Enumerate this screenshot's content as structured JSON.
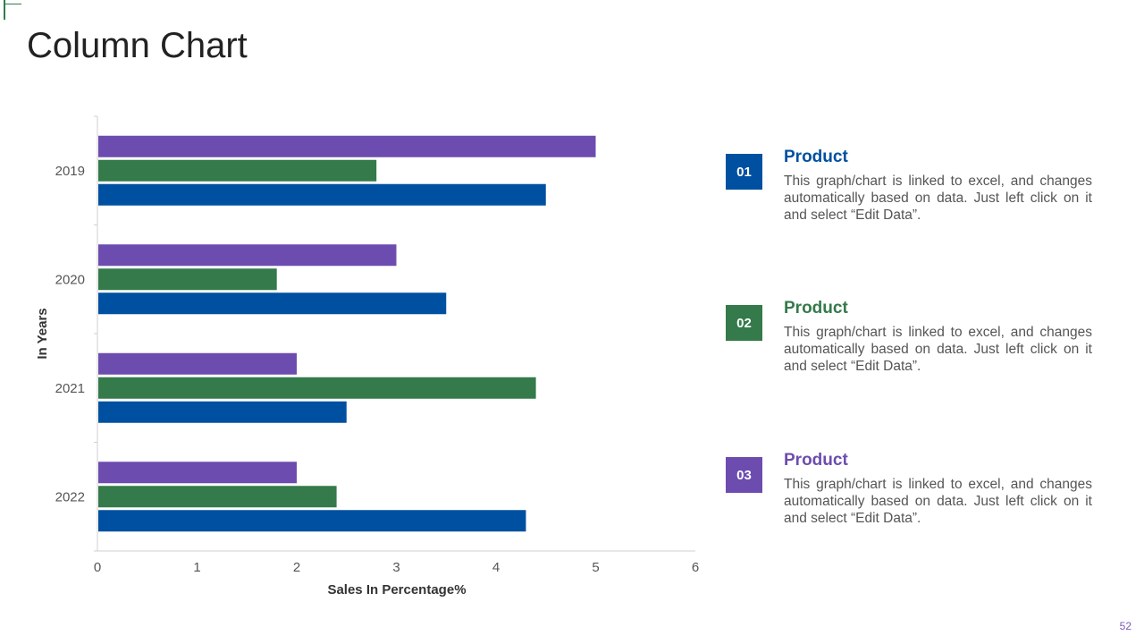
{
  "slide": {
    "title": "Column Chart",
    "page_number": "52"
  },
  "colors": {
    "series_1": "#0050a1",
    "series_2": "#347a4a",
    "series_3": "#6d4caf",
    "corner_accent": "#2f7d4b"
  },
  "legend": [
    {
      "badge": "01",
      "title": "Product",
      "description": "This graph/chart is linked to excel, and changes automatically based on data. Just left click on it and select “Edit Data”."
    },
    {
      "badge": "02",
      "title": "Product",
      "description": "This graph/chart is linked to excel, and changes automatically based on data. Just left click on it and select “Edit Data”."
    },
    {
      "badge": "03",
      "title": "Product",
      "description": "This graph/chart is linked to excel, and changes automatically based on data. Just left click on it and select “Edit Data”."
    }
  ],
  "chart_data": {
    "type": "bar",
    "orientation": "horizontal",
    "categories": [
      "2019",
      "2020",
      "2021",
      "2022"
    ],
    "series": [
      {
        "name": "Product 03",
        "values": [
          5.0,
          3.0,
          2.0,
          2.0
        ]
      },
      {
        "name": "Product 02",
        "values": [
          2.8,
          1.8,
          4.4,
          2.4
        ]
      },
      {
        "name": "Product 01",
        "values": [
          4.5,
          3.5,
          2.5,
          4.3
        ]
      }
    ],
    "xlim": [
      0,
      6
    ],
    "xticks": [
      "0",
      "1",
      "2",
      "3",
      "4",
      "5",
      "6"
    ],
    "xlabel": "Sales In Percentage%",
    "ylabel": "In Years",
    "grid": false,
    "legend_position": "right"
  }
}
